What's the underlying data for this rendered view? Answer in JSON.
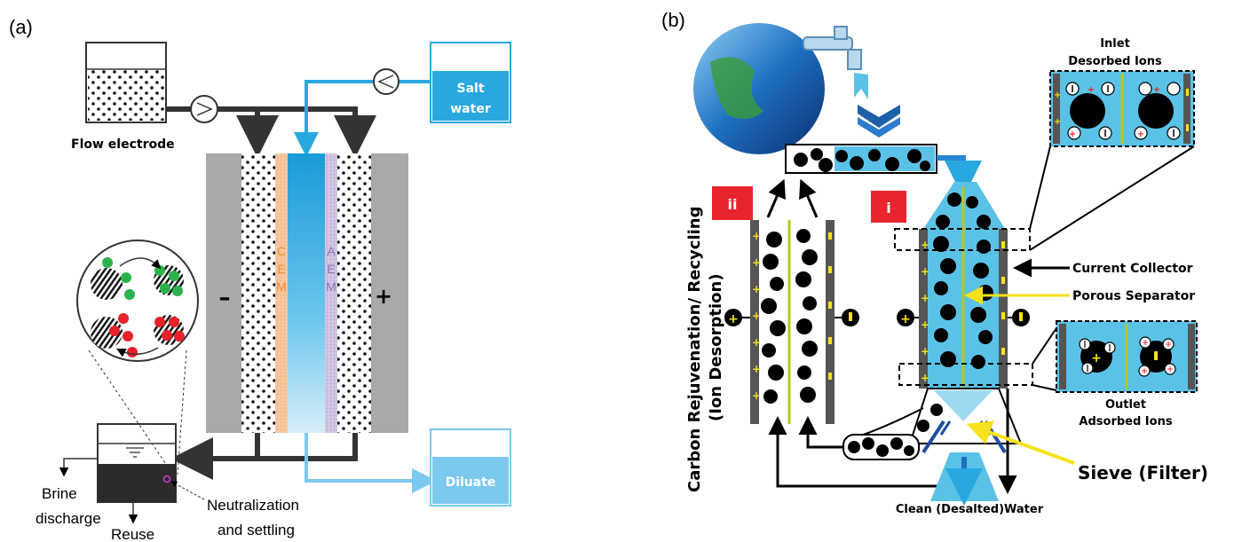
{
  "panel_a": {
    "label": "(a)",
    "flow_electrode": "Flow electrode",
    "salt_water": [
      "Salt",
      "water"
    ],
    "cem_letters": [
      "C",
      "E",
      "M"
    ],
    "aem_letters": [
      "A",
      "E",
      "M"
    ],
    "minus": "–",
    "plus": "+",
    "diluate": "Diluate",
    "brine": [
      "Brine",
      "discharge"
    ],
    "reuse": "Reuse",
    "neutralization": [
      "Neutralization",
      "and settling"
    ]
  },
  "panel_b": {
    "label": "(b)",
    "inlet": [
      "Inlet",
      "Desorbed Ions"
    ],
    "outlet": [
      "Outlet",
      "Adsorbed Ions"
    ],
    "current_collector": "Current Collector",
    "porous_separator": "Porous Separator",
    "sieve": "Sieve (Filter)",
    "clean_water": "Clean (Desalted)Water",
    "rejuvenation": [
      "Carbon Rejuvenation/ Recycling",
      "(Ion Desorption)"
    ],
    "tag_ii": "ii",
    "tag_i": "i"
  },
  "colors": {
    "blue_water": "#29a8df",
    "light_blue": "#7cc9ef",
    "cell_blue": "#5bc2e7",
    "red_tag": "#e8252f",
    "yellow": "#f5e21c",
    "gray_plate": "#a9a9a9",
    "ion_green": "#2bb24c",
    "ion_red": "#e8212b"
  },
  "icons": [
    "globe-icon",
    "faucet-icon",
    "pump-icon",
    "arrow-icon"
  ]
}
